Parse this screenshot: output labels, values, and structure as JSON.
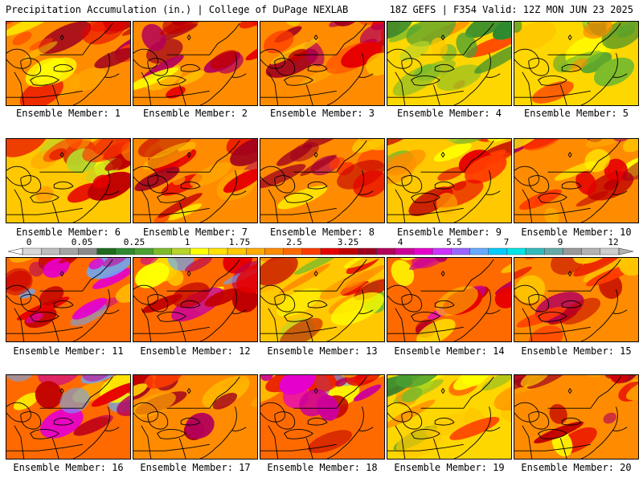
{
  "header": {
    "left_title": "Precipitation Accumulation (in.) | College of DuPage NEXLAB",
    "right_title": "18Z GEFS | F354 Valid: 12Z MON JUN 23 2025"
  },
  "colorbar": {
    "tick_labels": [
      "0",
      "0.05",
      "0.25",
      "1",
      "1.75",
      "2.5",
      "3.25",
      "4",
      "5.5",
      "7",
      "9",
      "12"
    ],
    "colors": [
      "#d7d7d7",
      "#bdbdbd",
      "#a3a3a3",
      "#8b8b8b",
      "#1f6b1f",
      "#2f8a2f",
      "#4aa032",
      "#7dbb2a",
      "#b7d52a",
      "#ffff00",
      "#ffe100",
      "#ffc800",
      "#ffaa00",
      "#ff8c00",
      "#ff6a00",
      "#ff3c00",
      "#e60000",
      "#c00000",
      "#a0001e",
      "#b4005a",
      "#cc0099",
      "#e600cc",
      "#cc33ff",
      "#9966ff",
      "#66aaff",
      "#00ccff",
      "#00e5e5",
      "#33bbbb",
      "#66aaaa",
      "#999999",
      "#b3b3b3",
      "#cccccc"
    ]
  },
  "members": [
    {
      "label": "Ensemble Member: 1",
      "scheme": "wet"
    },
    {
      "label": "Ensemble Member: 2",
      "scheme": "wet"
    },
    {
      "label": "Ensemble Member: 3",
      "scheme": "wet"
    },
    {
      "label": "Ensemble Member: 4",
      "scheme": "dry"
    },
    {
      "label": "Ensemble Member: 5",
      "scheme": "dry"
    },
    {
      "label": "Ensemble Member: 6",
      "scheme": "mid"
    },
    {
      "label": "Ensemble Member: 7",
      "scheme": "wet"
    },
    {
      "label": "Ensemble Member: 8",
      "scheme": "wet"
    },
    {
      "label": "Ensemble Member: 9",
      "scheme": "mid"
    },
    {
      "label": "Ensemble Member: 10",
      "scheme": "wet"
    },
    {
      "label": "Ensemble Member: 11",
      "scheme": "verywet"
    },
    {
      "label": "Ensemble Member: 12",
      "scheme": "verywet"
    },
    {
      "label": "Ensemble Member: 13",
      "scheme": "mid"
    },
    {
      "label": "Ensemble Member: 14",
      "scheme": "verywet"
    },
    {
      "label": "Ensemble Member: 15",
      "scheme": "wet"
    },
    {
      "label": "Ensemble Member: 16",
      "scheme": "verywet"
    },
    {
      "label": "Ensemble Member: 17",
      "scheme": "wet"
    },
    {
      "label": "Ensemble Member: 18",
      "scheme": "verywet"
    },
    {
      "label": "Ensemble Member: 19",
      "scheme": "dry"
    },
    {
      "label": "Ensemble Member: 20",
      "scheme": "wet"
    }
  ]
}
